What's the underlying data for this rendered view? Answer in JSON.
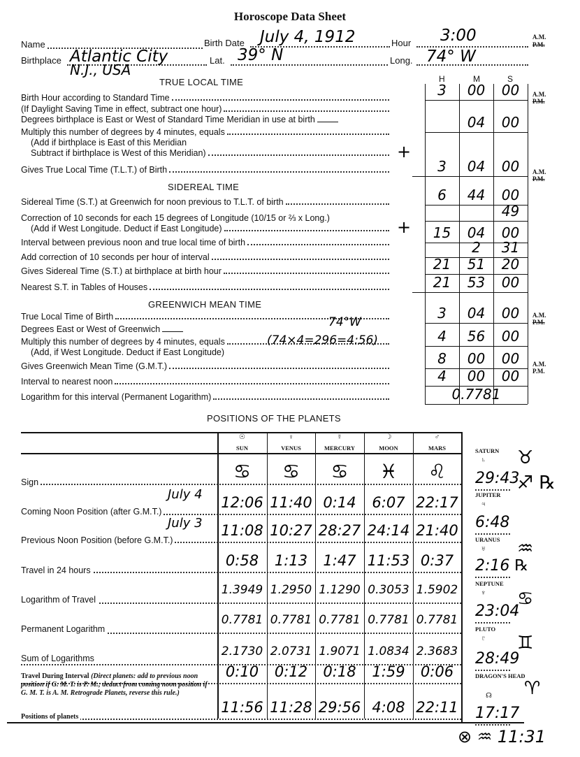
{
  "title": "Horoscope Data Sheet",
  "header": {
    "name_label": "Name",
    "birth_date_label": "Birth Date",
    "birth_date": "July 4, 1912",
    "hour_label": "Hour",
    "hour": "3:00",
    "am": "A.M.",
    "pm": "P.M.",
    "birthplace_label": "Birthplace",
    "birthplace": "Atlantic City",
    "birthplace_line2": "N.J., USA",
    "lat_label": "Lat.",
    "lat": "39° N",
    "long_label": "Long.",
    "long": "74° W"
  },
  "sections": {
    "true_local_time": "TRUE LOCAL TIME",
    "sidereal_time": "SIDEREAL TIME",
    "greenwich_mean_time": "GREENWICH MEAN TIME",
    "positions": "POSITIONS OF THE PLANETS"
  },
  "calc_rows": [
    {
      "label": "Birth Hour according to Standard Time"
    },
    {
      "label": "(If Daylight Saving Time in effect, subtract one hour)"
    },
    {
      "label": "Degrees birthplace is East or West of Standard Time Meridian in use at birth"
    },
    {
      "label": "Multiply this number of degrees by 4 minutes, equals"
    },
    {
      "label": "(Add if birthplace is East of this Meridian"
    },
    {
      "label": "Subtract if birthplace is West of this Meridian)",
      "sign": "+"
    },
    {
      "label": "Gives True Local Time (T.L.T.) of Birth"
    },
    {
      "label": "Sidereal Time (S.T.) at Greenwich for noon previous to T.L.T. of birth"
    },
    {
      "label": "Correction of 10 seconds for each 15 degrees of Longitude (10/15 or ⅔ x Long.)"
    },
    {
      "label": "(Add if West Longitude. Deduct if East Longitude)",
      "sign": "+"
    },
    {
      "label": "Interval between previous noon and true local time of birth"
    },
    {
      "label": "Add correction of 10 seconds per hour of interval"
    },
    {
      "label": "Gives Sidereal Time (S.T.) at birthplace at birth hour"
    },
    {
      "label": "Nearest S.T. in Tables of Houses"
    },
    {
      "label": "True Local Time of Birth"
    },
    {
      "label": "Degrees East or West of Greenwich",
      "note": "74°W"
    },
    {
      "label": "Multiply this number of degrees by 4 minutes,  equals",
      "note": "(74×4=296=4:56)"
    },
    {
      "label": "(Add, if West Longitude. Deduct if East Longitude)"
    },
    {
      "label": "Gives Greenwich Mean Time (G.M.T.)"
    },
    {
      "label": "Interval to nearest noon"
    },
    {
      "label": "Logarithm for this interval (Permanent Logarithm)"
    }
  ],
  "time_table": {
    "columns": [
      "H",
      "M",
      "S"
    ],
    "rows": [
      {
        "h": "3",
        "m": "00",
        "s": "00"
      },
      {
        "h": "",
        "m": "04",
        "s": "00"
      },
      {
        "h": "3",
        "m": "04",
        "s": "00"
      },
      {
        "h": "6",
        "m": "44",
        "s": "00"
      },
      {
        "h": "",
        "m": "",
        "s": "49"
      },
      {
        "h": "15",
        "m": "04",
        "s": "00"
      },
      {
        "h": "",
        "m": "2",
        "s": "31"
      },
      {
        "h": "21",
        "m": "51",
        "s": "20"
      },
      {
        "h": "21",
        "m": "53",
        "s": "00"
      },
      {
        "h": "3",
        "m": "04",
        "s": "00"
      },
      {
        "h": "4",
        "m": "56",
        "s": "00"
      },
      {
        "h": "8",
        "m": "00",
        "s": "00"
      },
      {
        "h": "4",
        "m": "00",
        "s": "00"
      },
      {
        "merged": "0.7781"
      }
    ]
  },
  "planets": {
    "columns": [
      {
        "symbol": "☉",
        "name": "SUN"
      },
      {
        "symbol": "♀",
        "name": "VENUS"
      },
      {
        "symbol": "☿",
        "name": "MERCURY"
      },
      {
        "symbol": "☽",
        "name": "MOON"
      },
      {
        "symbol": "♂",
        "name": "MARS"
      }
    ],
    "rows": [
      {
        "label": "Sign",
        "values": [
          "♋",
          "♋",
          "♋",
          "♓",
          "♌"
        ]
      },
      {
        "label": "Coming Noon Position (after G.M.T.)",
        "note": "July 4",
        "values": [
          "12:06",
          "11:40",
          "0:14",
          "6:07",
          "22:17"
        ]
      },
      {
        "label": "Previous Noon Position (before G.M.T.)",
        "note": "July 3",
        "values": [
          "11:08",
          "10:27",
          "28:27",
          "24:14",
          "21:40"
        ]
      },
      {
        "label": "Travel in 24 hours",
        "values": [
          "0:58",
          "1:13",
          "1:47",
          "11:53",
          "0:37"
        ]
      },
      {
        "label": "Logarithm of Travel",
        "values": [
          "1.3949",
          "1.2950",
          "1.1290",
          "0.3053",
          "1.5902"
        ]
      },
      {
        "label": "Permanent Logarithm",
        "values": [
          "0.7781",
          "0.7781",
          "0.7781",
          "0.7781",
          "0.7781"
        ]
      },
      {
        "label": "Sum of Logarithms",
        "values": [
          "2.1730",
          "2.0731",
          "1.9071",
          "1.0834",
          "2.3683"
        ]
      },
      {
        "label": "Travel During Interval",
        "label_note": "(Direct planets: add to previous noon position if G. M. T. is P. M.; deduct from coming noon position if G. M. T. is A. M. Retrograde Planets, reverse this rule.)",
        "values": [
          "0:10",
          "0:12",
          "0:18",
          "1:59",
          "0:06"
        ]
      },
      {
        "label": "Positions of planets",
        "values": [
          "11:56",
          "11:28",
          "29:56",
          "4:08",
          "22:11"
        ]
      }
    ],
    "outer": [
      {
        "name": "SATURN",
        "symbol": "♄",
        "sign": "♉",
        "position": "29:43"
      },
      {
        "name": "JUPITER",
        "symbol": "♃",
        "sign": "♐ ℞",
        "position": "6:48"
      },
      {
        "name": "URANUS",
        "symbol": "♅",
        "sign": "♒",
        "position": "2:16 ℞"
      },
      {
        "name": "NEPTUNE",
        "symbol": "♆",
        "sign": "♋",
        "position": "23:04"
      },
      {
        "name": "PLUTO",
        "symbol": "♇",
        "sign": "♊",
        "position": "28:49"
      },
      {
        "name": "DRAGON'S HEAD",
        "symbol": "☊",
        "sign": "♈",
        "position": "17:17"
      }
    ],
    "footnote": "⊗ ♒ 11:31"
  }
}
